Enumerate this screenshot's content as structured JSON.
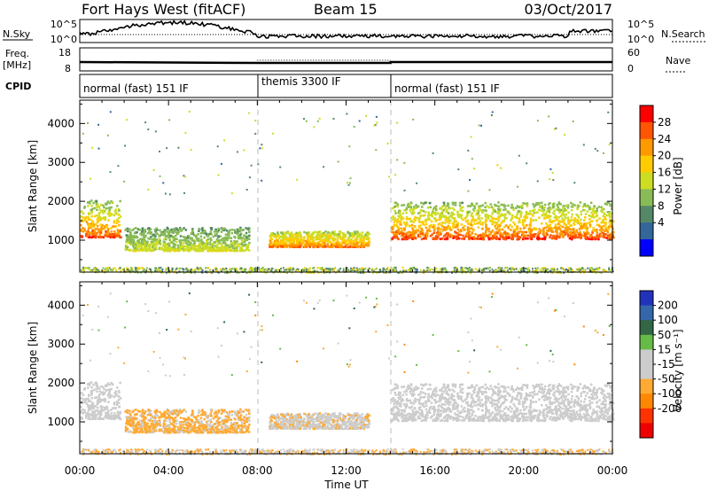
{
  "header": {
    "radar": "Fort Hays West (fitACF)",
    "beam": "Beam 15",
    "date": "03/Oct/2017"
  },
  "top_panels": {
    "nsky_label": "N.Sky",
    "nsearch_label": "N.Search",
    "noise_ticks": [
      "10^5",
      "10^0"
    ],
    "freq_label": "Freq.",
    "freq_unit": "[MHz]",
    "freq_ticks": [
      "18",
      "8"
    ],
    "nave_label": "Nave",
    "nave_ticks": [
      "60",
      "0"
    ],
    "cpid_label": "CPID",
    "cpid_segments": [
      {
        "label": "normal (fast) 151 IF",
        "start_hour": 0
      },
      {
        "label": "themis 3300 IF",
        "start_hour": 8
      },
      {
        "label": "normal (fast) 151 IF",
        "start_hour": 14
      }
    ]
  },
  "axes": {
    "xlabel": "Time UT",
    "xticks": [
      "00:00",
      "04:00",
      "08:00",
      "12:00",
      "16:00",
      "20:00",
      "00:00"
    ],
    "ylabel": "Slant Range [km]",
    "yticks": [
      "1000",
      "2000",
      "3000",
      "4000"
    ]
  },
  "power_colorbar": {
    "label": "Power [dB]",
    "ticks": [
      "28",
      "24",
      "20",
      "16",
      "12",
      "8",
      "4"
    ],
    "colors": [
      "#ff0000",
      "#ff5500",
      "#ff9900",
      "#ffcc00",
      "#ccdd22",
      "#88bb55",
      "#558866",
      "#336699",
      "#0000ff"
    ]
  },
  "velocity_colorbar": {
    "label": "Velocity [m s⁻¹]",
    "ticks": [
      "200",
      "100",
      "50",
      "15",
      "-15",
      "-50",
      "-100",
      "-200"
    ],
    "colors": [
      "#2233bb",
      "#3366aa",
      "#336644",
      "#66bb44",
      "#cccccc",
      "#cccccc",
      "#ffaa33",
      "#ff8800",
      "#ff3300",
      "#ee0000"
    ]
  },
  "chart_data": [
    {
      "type": "heatmap",
      "title": "Power",
      "xlabel": "Time UT",
      "ylabel": "Slant Range [km]",
      "x_range_hours": [
        0,
        24
      ],
      "ylim": [
        180,
        4600
      ],
      "colorbar_label": "Power [dB]",
      "colorbar_range": [
        0,
        32
      ],
      "scatter_regions": [
        {
          "t_start": 0.0,
          "t_end": 1.8,
          "range_start": 1100,
          "range_end": 2050,
          "power_core": 28,
          "power_edge": 12
        },
        {
          "t_start": 2.0,
          "t_end": 7.6,
          "range_start": 750,
          "range_end": 1350,
          "power_core": 17,
          "power_edge": 10
        },
        {
          "t_start": 8.5,
          "t_end": 13.0,
          "range_start": 850,
          "range_end": 1250,
          "power_core": 26,
          "power_edge": 14
        },
        {
          "t_start": 14.0,
          "t_end": 24.0,
          "range_start": 1050,
          "range_end": 2000,
          "power_core": 29,
          "power_edge": 12
        }
      ]
    },
    {
      "type": "heatmap",
      "title": "Velocity",
      "xlabel": "Time UT",
      "ylabel": "Slant Range [km]",
      "x_range_hours": [
        0,
        24
      ],
      "ylim": [
        180,
        4600
      ],
      "colorbar_label": "Velocity [m s⁻¹]",
      "colorbar_range": [
        -250,
        250
      ],
      "scatter_regions": [
        {
          "t_start": 0.0,
          "t_end": 1.8,
          "range_start": 1100,
          "range_end": 2050,
          "velocity": 0
        },
        {
          "t_start": 2.0,
          "t_end": 7.6,
          "range_start": 750,
          "range_end": 1350,
          "velocity": -60
        },
        {
          "t_start": 8.5,
          "t_end": 13.0,
          "range_start": 850,
          "range_end": 1250,
          "velocity": -40
        },
        {
          "t_start": 14.0,
          "t_end": 24.0,
          "range_start": 1050,
          "range_end": 2000,
          "velocity": 0
        }
      ]
    }
  ]
}
